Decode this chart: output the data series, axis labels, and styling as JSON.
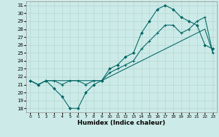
{
  "title": "",
  "xlabel": "Humidex (Indice chaleur)",
  "bg_color": "#cceae7",
  "line_color": "#006666",
  "grid_color": "#b0d8d4",
  "xlim": [
    -0.5,
    23.5
  ],
  "ylim": [
    17.5,
    31.5
  ],
  "x_ticks": [
    0,
    1,
    2,
    3,
    4,
    5,
    6,
    7,
    8,
    9,
    10,
    11,
    12,
    13,
    14,
    15,
    16,
    17,
    18,
    19,
    20,
    21,
    22,
    23
  ],
  "y_ticks": [
    18,
    19,
    20,
    21,
    22,
    23,
    24,
    25,
    26,
    27,
    28,
    29,
    30,
    31
  ],
  "line_diamond": [
    21.5,
    21.0,
    21.5,
    20.5,
    19.5,
    18.0,
    18.0,
    20.0,
    21.0,
    21.5,
    23.0,
    23.5,
    24.5,
    25.0,
    27.5,
    29.0,
    30.5,
    31.0,
    30.5,
    29.5,
    29.0,
    28.5,
    26.0,
    25.5
  ],
  "line_plus": [
    21.5,
    21.0,
    21.5,
    21.5,
    21.0,
    21.5,
    21.5,
    21.0,
    21.5,
    21.5,
    22.5,
    23.0,
    23.5,
    24.0,
    25.5,
    26.5,
    27.5,
    28.5,
    28.5,
    27.5,
    28.0,
    29.0,
    29.5,
    25.0
  ],
  "line_plain": [
    21.5,
    21.0,
    21.5,
    21.5,
    21.5,
    21.5,
    21.5,
    21.5,
    21.5,
    21.5,
    22.0,
    22.5,
    23.0,
    23.5,
    24.0,
    24.5,
    25.0,
    25.5,
    26.0,
    26.5,
    27.0,
    27.5,
    28.0,
    25.0
  ]
}
